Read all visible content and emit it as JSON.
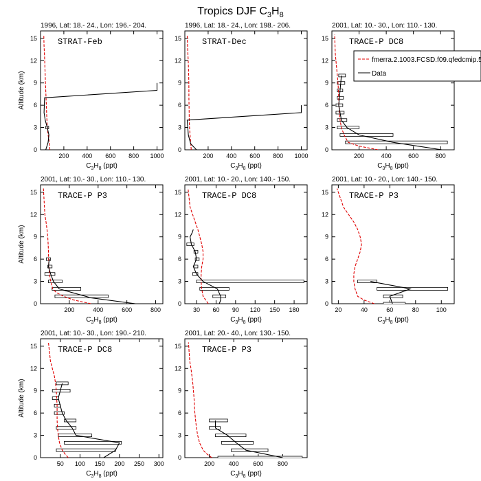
{
  "figure": {
    "title": "Tropics DJF C",
    "title_sub": "3",
    "title_tail": "H",
    "title_sub2": "8",
    "legend": {
      "model_label": "fmerra.2.1003.FCSD.f09.qfedcmip.5",
      "data_label": "Data",
      "model_color": "#e00000",
      "data_color": "#000000"
    }
  },
  "chart_data": [
    {
      "type": "line",
      "region": "1996, Lat: 18.- 24., Lon: 196.- 204.",
      "campaign": "STRAT-Feb",
      "xlabel": "C3H8 (ppt)",
      "ylabel": "Altitude (km)",
      "xlim": [
        0,
        1050
      ],
      "ylim": [
        0,
        16
      ],
      "xticks": [
        200,
        400,
        600,
        800,
        1000
      ],
      "yticks": [
        0,
        3,
        6,
        9,
        12,
        15
      ],
      "model": {
        "x": [
          80,
          75,
          65,
          58,
          55,
          52,
          50,
          47,
          45,
          42,
          40,
          38,
          36,
          33,
          30,
          28
        ],
        "y": [
          0,
          1,
          2,
          3,
          4,
          5,
          6,
          7,
          8,
          9,
          10,
          11,
          12,
          13,
          14,
          15.5
        ]
      },
      "data": {
        "x": [
          45,
          65,
          72,
          58,
          40,
          30,
          35,
          1000,
          1000
        ],
        "y": [
          0,
          1,
          2,
          3,
          4,
          5,
          7,
          8,
          9
        ]
      },
      "boxes": [
        {
          "lo": 45,
          "hi": 70,
          "y": 3
        }
      ]
    },
    {
      "type": "line",
      "region": "1996, Lat: 18.- 24., Lon: 198.- 206.",
      "campaign": "STRAT-Dec",
      "xlabel": "C3H8 (ppt)",
      "ylabel": "",
      "xlim": [
        0,
        1050
      ],
      "ylim": [
        0,
        16
      ],
      "xticks": [
        200,
        400,
        600,
        800,
        1000
      ],
      "yticks": [
        0,
        3,
        6,
        9,
        12,
        15
      ],
      "model": {
        "x": [
          55,
          50,
          45,
          40,
          38,
          37,
          36,
          35,
          35,
          34,
          33,
          31,
          29,
          26,
          23,
          20
        ],
        "y": [
          0,
          1,
          2,
          3,
          4,
          5,
          6,
          7,
          8,
          9,
          10,
          11,
          12,
          13,
          14,
          15.5
        ]
      },
      "data": {
        "x": [
          100,
          50,
          30,
          20,
          1000,
          1000
        ],
        "y": [
          0,
          0.8,
          2,
          4,
          5,
          6
        ]
      },
      "boxes": []
    },
    {
      "type": "line",
      "region": "2001, Lat: 10.- 30., Lon: 110.- 130.",
      "campaign": "TRACE-P DC8",
      "xlabel": "C3H8 (ppt)",
      "ylabel": "",
      "xlim": [
        0,
        900
      ],
      "ylim": [
        0,
        16
      ],
      "xticks": [
        200,
        400,
        600,
        800
      ],
      "yticks": [
        0,
        3,
        6,
        9,
        12,
        15
      ],
      "model": {
        "x": [
          340,
          200,
          120,
          90,
          70,
          60,
          55,
          52,
          50,
          48,
          45,
          40,
          35,
          30,
          25,
          20
        ],
        "y": [
          0,
          0.5,
          1,
          2,
          3,
          4,
          5,
          6,
          7,
          8,
          9,
          10,
          11,
          12,
          13,
          15.5
        ]
      },
      "data": {
        "x": [
          810,
          450,
          200,
          110,
          70,
          60,
          50,
          55,
          60,
          65,
          70
        ],
        "y": [
          0,
          1,
          2,
          3,
          4,
          5,
          6,
          7,
          8,
          9,
          10
        ]
      },
      "boxes": [
        {
          "lo": 100,
          "hi": 850,
          "y": 1
        },
        {
          "lo": 60,
          "hi": 450,
          "y": 2
        },
        {
          "lo": 40,
          "hi": 200,
          "y": 3
        },
        {
          "lo": 40,
          "hi": 110,
          "y": 4
        },
        {
          "lo": 30,
          "hi": 90,
          "y": 5
        },
        {
          "lo": 30,
          "hi": 80,
          "y": 6
        },
        {
          "lo": 40,
          "hi": 85,
          "y": 7
        },
        {
          "lo": 40,
          "hi": 80,
          "y": 8
        },
        {
          "lo": 40,
          "hi": 95,
          "y": 9
        },
        {
          "lo": 50,
          "hi": 100,
          "y": 10
        }
      ]
    },
    {
      "type": "line",
      "region": "2001, Lat: 10.- 30., Lon: 110.- 130.",
      "campaign": "TRACE-P P3",
      "xlabel": "C3H8 (ppt)",
      "ylabel": "Altitude (km)",
      "xlim": [
        0,
        850
      ],
      "ylim": [
        0,
        16
      ],
      "xticks": [
        200,
        400,
        600,
        800
      ],
      "yticks": [
        0,
        3,
        6,
        9,
        12,
        15
      ],
      "model": {
        "x": [
          350,
          230,
          160,
          110,
          85,
          70,
          62,
          58,
          56,
          55,
          53,
          50,
          45,
          38,
          30,
          20
        ],
        "y": [
          0,
          0.5,
          1,
          1.5,
          2,
          3,
          4,
          5,
          6,
          7,
          8,
          9,
          10,
          11,
          12,
          15.5
        ]
      },
      "data": {
        "x": [
          660,
          350,
          220,
          130,
          90,
          70,
          55,
          60
        ],
        "y": [
          0,
          0.8,
          1.5,
          2,
          3,
          4,
          5,
          6
        ]
      },
      "boxes": [
        {
          "lo": 100,
          "hi": 470,
          "y": 1
        },
        {
          "lo": 80,
          "hi": 280,
          "y": 2
        },
        {
          "lo": 55,
          "hi": 150,
          "y": 3
        },
        {
          "lo": 30,
          "hi": 100,
          "y": 4
        },
        {
          "lo": 50,
          "hi": 80,
          "y": 5
        },
        {
          "lo": 40,
          "hi": 70,
          "y": 6
        }
      ]
    },
    {
      "type": "line",
      "region": "2001, Lat: 10.- 20., Lon: 140.- 150.",
      "campaign": "TRACE-P DC8",
      "xlabel": "C3H8 (ppt)",
      "ylabel": "",
      "xlim": [
        12,
        200
      ],
      "ylim": [
        0,
        16
      ],
      "xticks": [
        30,
        60,
        90,
        120,
        150,
        180
      ],
      "yticks": [
        0,
        3,
        6,
        9,
        12,
        15
      ],
      "model": {
        "x": [
          48,
          44,
          40,
          38,
          37,
          37,
          38,
          40,
          40,
          38,
          35,
          32,
          28,
          24,
          20,
          17
        ],
        "y": [
          0,
          0.5,
          1,
          2,
          3,
          4,
          5,
          6,
          7,
          8,
          9,
          10,
          11,
          12,
          13,
          15.5
        ]
      },
      "data": {
        "x": [
          65,
          67,
          67,
          62,
          40,
          30,
          25,
          30,
          28,
          22,
          20,
          23,
          25
        ],
        "y": [
          0,
          0.5,
          1,
          2,
          3,
          4,
          5,
          6,
          7,
          8,
          9,
          9.5,
          10
        ]
      },
      "boxes": [
        {
          "lo": 55,
          "hi": 75,
          "y": 1
        },
        {
          "lo": 35,
          "hi": 80,
          "y": 2
        },
        {
          "lo": 30,
          "hi": 195,
          "y": 3
        },
        {
          "lo": 24,
          "hi": 32,
          "y": 4
        },
        {
          "lo": 26,
          "hi": 32,
          "y": 5
        },
        {
          "lo": 28,
          "hi": 34,
          "y": 6
        },
        {
          "lo": 26,
          "hi": 32,
          "y": 7
        },
        {
          "lo": 15,
          "hi": 26,
          "y": 8
        }
      ]
    },
    {
      "type": "line",
      "region": "2001, Lat: 10.- 20., Lon: 140.- 150.",
      "campaign": "TRACE-P P3",
      "xlabel": "C3H8 (ppt)",
      "ylabel": "",
      "xlim": [
        15,
        110
      ],
      "ylim": [
        0,
        16
      ],
      "xticks": [
        20,
        40,
        60,
        80,
        100
      ],
      "yticks": [
        0,
        3,
        6,
        9,
        12,
        15
      ],
      "model": {
        "x": [
          48,
          40,
          35,
          33,
          32,
          32,
          33,
          35,
          37,
          38,
          37,
          35,
          32,
          28,
          24,
          19
        ],
        "y": [
          0,
          0.5,
          1,
          2,
          3,
          4,
          5,
          6,
          7,
          8,
          9,
          10,
          11,
          12,
          13,
          15.5
        ]
      },
      "data": {
        "x": [
          62,
          60,
          76,
          45
        ],
        "y": [
          0,
          1,
          2,
          3
        ]
      },
      "boxes": [
        {
          "lo": 55,
          "hi": 72,
          "y": 0
        },
        {
          "lo": 55,
          "hi": 70,
          "y": 1
        },
        {
          "lo": 50,
          "hi": 105,
          "y": 2
        },
        {
          "lo": 35,
          "hi": 50,
          "y": 3
        }
      ]
    },
    {
      "type": "line",
      "region": "2001, Lat: 10.- 30., Lon: 190.- 210.",
      "campaign": "TRACE-P DC8",
      "xlabel": "C3H8 (ppt)",
      "ylabel": "Altitude (km)",
      "xlim": [
        0,
        310
      ],
      "ylim": [
        0,
        16
      ],
      "xticks": [
        50,
        100,
        150,
        200,
        250,
        300
      ],
      "yticks": [
        0,
        3,
        6,
        9,
        12,
        15
      ],
      "model": {
        "x": [
          70,
          62,
          55,
          48,
          45,
          43,
          42,
          42,
          42,
          41,
          40,
          38,
          35,
          30,
          25,
          20
        ],
        "y": [
          0,
          0.5,
          1,
          2,
          3,
          4,
          5,
          6,
          7,
          8,
          9,
          10,
          11,
          12,
          13,
          15.5
        ]
      },
      "data": {
        "x": [
          160,
          190,
          200,
          90,
          80,
          65,
          55,
          50,
          45,
          50,
          55
        ],
        "y": [
          0,
          1,
          2,
          3,
          4,
          5,
          6,
          7,
          8,
          9,
          10
        ]
      },
      "boxes": [
        {
          "lo": 40,
          "hi": 190,
          "y": 1
        },
        {
          "lo": 60,
          "hi": 205,
          "y": 2
        },
        {
          "lo": 45,
          "hi": 130,
          "y": 3
        },
        {
          "lo": 40,
          "hi": 90,
          "y": 4
        },
        {
          "lo": 60,
          "hi": 90,
          "y": 5
        },
        {
          "lo": 35,
          "hi": 60,
          "y": 6
        },
        {
          "lo": 35,
          "hi": 50,
          "y": 7
        },
        {
          "lo": 30,
          "hi": 45,
          "y": 8
        },
        {
          "lo": 30,
          "hi": 75,
          "y": 9
        },
        {
          "lo": 40,
          "hi": 70,
          "y": 10
        }
      ]
    },
    {
      "type": "line",
      "region": "2001, Lat: 20.- 40., Lon: 130.- 150.",
      "campaign": "TRACE-P P3",
      "xlabel": "C3H8 (ppt)",
      "ylabel": "",
      "xlim": [
        0,
        1000
      ],
      "ylim": [
        0,
        16
      ],
      "xticks": [
        200,
        400,
        600,
        800
      ],
      "yticks": [
        0,
        3,
        6,
        9,
        12,
        15
      ],
      "model": {
        "x": [
          220,
          180,
          150,
          120,
          105,
          95,
          88,
          82,
          78,
          75,
          70,
          65,
          58,
          50,
          40,
          30
        ],
        "y": [
          0,
          0.5,
          1,
          2,
          3,
          4,
          5,
          6,
          7,
          8,
          9,
          10,
          11,
          12,
          13,
          15.5
        ]
      },
      "data": {
        "x": [
          800,
          500,
          420,
          350,
          250,
          250
        ],
        "y": [
          0,
          1,
          2,
          3,
          4,
          5
        ]
      },
      "boxes": [
        {
          "lo": 270,
          "hi": 960,
          "y": 0
        },
        {
          "lo": 380,
          "hi": 680,
          "y": 1
        },
        {
          "lo": 300,
          "hi": 560,
          "y": 2
        },
        {
          "lo": 250,
          "hi": 500,
          "y": 3
        },
        {
          "lo": 200,
          "hi": 290,
          "y": 4
        },
        {
          "lo": 200,
          "hi": 350,
          "y": 5
        }
      ]
    }
  ]
}
